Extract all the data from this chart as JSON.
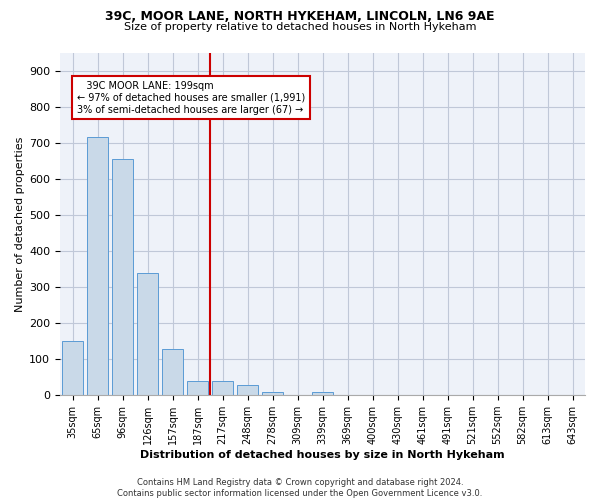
{
  "title1": "39C, MOOR LANE, NORTH HYKEHAM, LINCOLN, LN6 9AE",
  "title2": "Size of property relative to detached houses in North Hykeham",
  "xlabel": "Distribution of detached houses by size in North Hykeham",
  "ylabel": "Number of detached properties",
  "categories": [
    "35sqm",
    "65sqm",
    "96sqm",
    "126sqm",
    "157sqm",
    "187sqm",
    "217sqm",
    "248sqm",
    "278sqm",
    "309sqm",
    "339sqm",
    "369sqm",
    "400sqm",
    "430sqm",
    "461sqm",
    "491sqm",
    "521sqm",
    "552sqm",
    "582sqm",
    "613sqm",
    "643sqm"
  ],
  "values": [
    150,
    715,
    655,
    340,
    128,
    40,
    40,
    28,
    10,
    0,
    8,
    0,
    0,
    0,
    0,
    0,
    0,
    0,
    0,
    0,
    0
  ],
  "bar_color": "#c9d9e8",
  "bar_edge_color": "#5b9bd5",
  "grid_color": "#c0c8d8",
  "bg_color": "#eef2f9",
  "vline_x": 5.5,
  "vline_color": "#cc0000",
  "annotation_line1": "   39C MOOR LANE: 199sqm",
  "annotation_line2": "← 97% of detached houses are smaller (1,991)",
  "annotation_line3": "3% of semi-detached houses are larger (67) →",
  "annotation_box_color": "#ffffff",
  "annotation_box_edge": "#cc0000",
  "footnote": "Contains HM Land Registry data © Crown copyright and database right 2024.\nContains public sector information licensed under the Open Government Licence v3.0.",
  "ylim": [
    0,
    950
  ],
  "yticks": [
    0,
    100,
    200,
    300,
    400,
    500,
    600,
    700,
    800,
    900
  ]
}
